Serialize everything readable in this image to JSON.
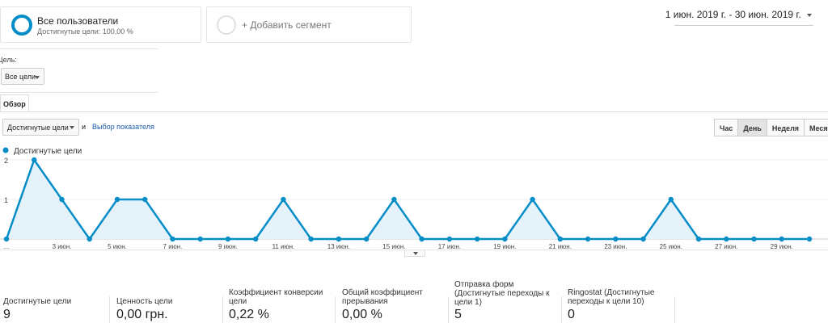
{
  "segments": {
    "all": {
      "title": "Все пользователи",
      "subtitle": "Достигнутые цели: 100,00 %"
    },
    "add": {
      "label": "+ Добавить сегмент"
    }
  },
  "date_range": "1 июн. 2019 г. - 30 июн. 2019 г.",
  "goal": {
    "label": "Цель:",
    "selected": "Все цели"
  },
  "tabs": {
    "overview": "Обзор"
  },
  "metric": {
    "selected": "Достигнутые цели",
    "and": "и",
    "choose": "Выбор показателя"
  },
  "periods": [
    {
      "label": "Час",
      "active": false
    },
    {
      "label": "День",
      "active": true
    },
    {
      "label": "Неделя",
      "active": false
    },
    {
      "label": "Месяц",
      "active": false
    }
  ],
  "colors": {
    "accent": "#058dc7",
    "fill": "#e6f2fa",
    "link": "#1a5aa8"
  },
  "chart_data": {
    "type": "line",
    "legend": "Достигнутые цели",
    "series": [
      {
        "name": "Достигнутые цели",
        "x": [
          1,
          2,
          3,
          4,
          5,
          6,
          7,
          8,
          9,
          10,
          11,
          12,
          13,
          14,
          15,
          16,
          17,
          18,
          19,
          20,
          21,
          22,
          23,
          24,
          25,
          26,
          27,
          28,
          29,
          30
        ],
        "values": [
          0,
          2,
          1,
          0,
          1,
          1,
          0,
          0,
          0,
          0,
          1,
          0,
          0,
          0,
          1,
          0,
          0,
          0,
          0,
          1,
          0,
          0,
          0,
          0,
          1,
          0,
          0,
          0,
          0,
          0
        ]
      }
    ],
    "x_ticks": [
      {
        "day": 1,
        "label": "..."
      },
      {
        "day": 3,
        "label": "3 июн."
      },
      {
        "day": 5,
        "label": "5 июн."
      },
      {
        "day": 7,
        "label": "7 июн."
      },
      {
        "day": 9,
        "label": "9 июн."
      },
      {
        "day": 11,
        "label": "11 июн."
      },
      {
        "day": 13,
        "label": "13 июн."
      },
      {
        "day": 15,
        "label": "15 июн."
      },
      {
        "day": 17,
        "label": "17 июн."
      },
      {
        "day": 19,
        "label": "19 июн."
      },
      {
        "day": 21,
        "label": "21 июн."
      },
      {
        "day": 23,
        "label": "23 июн."
      },
      {
        "day": 25,
        "label": "25 июн."
      },
      {
        "day": 27,
        "label": "27 июн."
      },
      {
        "day": 29,
        "label": "29 июн."
      }
    ],
    "y_ticks": [
      1,
      2
    ],
    "ylim": [
      0,
      2
    ],
    "grid": true
  },
  "stats": [
    {
      "label": "Достигнутые цели",
      "value": "9"
    },
    {
      "label": "Ценность цели",
      "value": "0,00 грн."
    },
    {
      "label": "Коэффициент конверсии цели",
      "value": "0,22 %"
    },
    {
      "label": "Общий коэффициент прерывания",
      "value": "0,00 %"
    },
    {
      "label": "Отправка форм (Достигнутые переходы к цели 1)",
      "value": "5"
    },
    {
      "label": "Ringostat (Достигнутые переходы к цели 10)",
      "value": "0"
    }
  ]
}
